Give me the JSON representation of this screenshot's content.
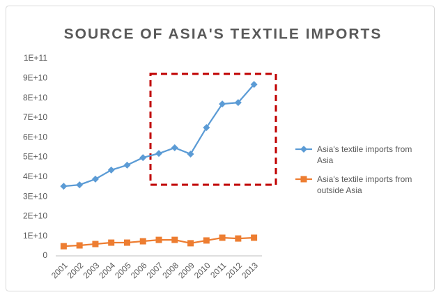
{
  "chart_data": {
    "type": "line",
    "title": "SOURCE OF ASIA'S TEXTILE IMPORTS",
    "categories": [
      "2001",
      "2002",
      "2003",
      "2004",
      "2005",
      "2006",
      "2007",
      "2008",
      "2009",
      "2010",
      "2011",
      "2012",
      "2013"
    ],
    "series": [
      {
        "name": "Asia's textile imports from Asia",
        "color": "#5b9bd5",
        "marker": "diamond",
        "values": [
          35300000000,
          36000000000,
          38900000000,
          43500000000,
          46000000000,
          49800000000,
          51900000000,
          54800000000,
          51600000000,
          65000000000,
          77000000000,
          77700000000,
          86900000000
        ]
      },
      {
        "name": "Asia's textile imports from outside Asia",
        "color": "#ed7d31",
        "marker": "square",
        "values": [
          4900000000,
          5300000000,
          6000000000,
          6700000000,
          6700000000,
          7400000000,
          8100000000,
          8100000000,
          6400000000,
          7800000000,
          9200000000,
          8800000000,
          9200000000
        ]
      }
    ],
    "ylim": [
      0,
      100000000000
    ],
    "yticks": [
      0,
      {
        "value": 10000000000,
        "label": "1E+10"
      },
      {
        "value": 20000000000,
        "label": "2E+10"
      },
      {
        "value": 30000000000,
        "label": "3E+10"
      },
      {
        "value": 40000000000,
        "label": "4E+10"
      },
      {
        "value": 50000000000,
        "label": "5E+10"
      },
      {
        "value": 60000000000,
        "label": "6E+10"
      },
      {
        "value": 70000000000,
        "label": "7E+10"
      },
      {
        "value": 80000000000,
        "label": "8E+10"
      },
      {
        "value": 90000000000,
        "label": "9E+10"
      },
      {
        "value": 100000000000,
        "label": "1E+11"
      }
    ],
    "grid": false,
    "legend": "right"
  }
}
